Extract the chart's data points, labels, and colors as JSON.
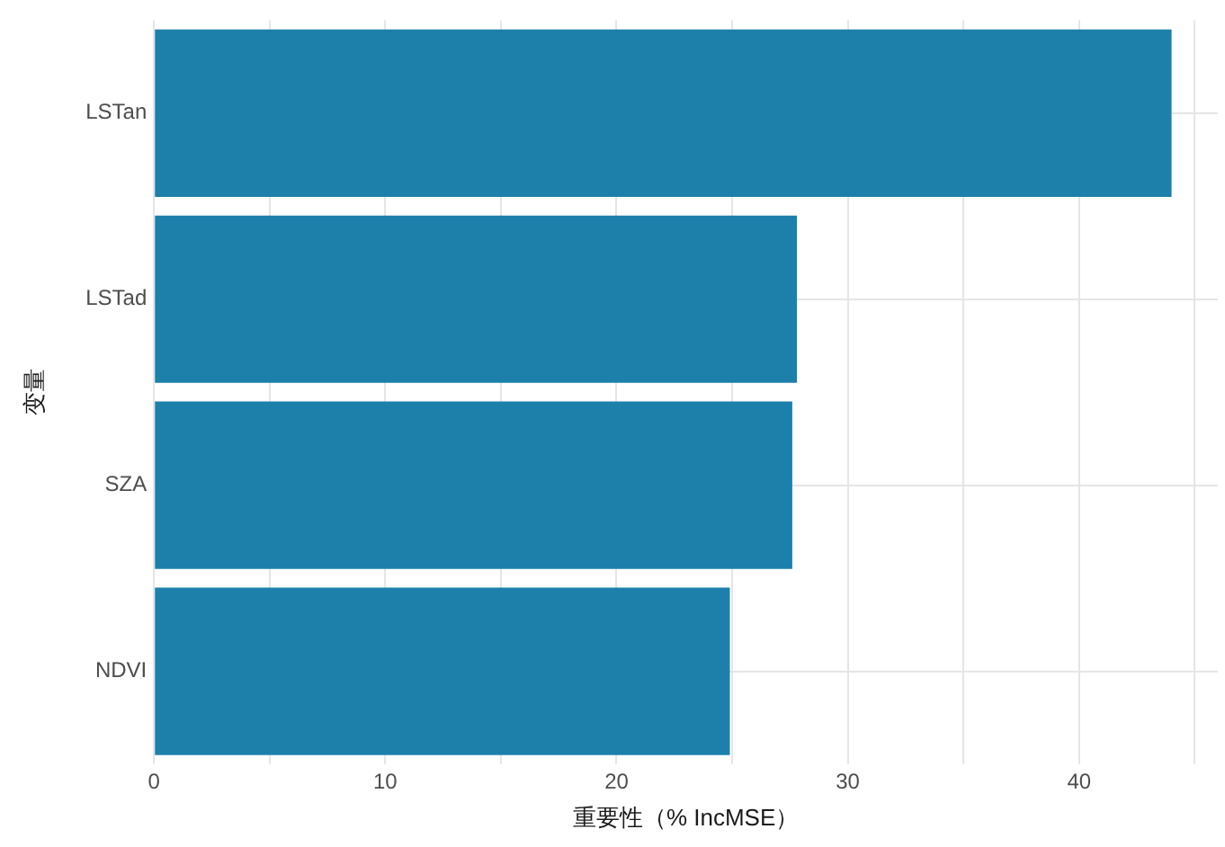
{
  "chart_data": {
    "type": "bar",
    "orientation": "horizontal",
    "xlabel": "重要性（% IncMSE）",
    "ylabel": "变量",
    "categories": [
      "LSTan",
      "LSTad",
      "SZA",
      "NDVI"
    ],
    "values": [
      44.0,
      27.8,
      27.6,
      24.9
    ],
    "color": "#1c80ab",
    "xlim": [
      0,
      46
    ],
    "xticks": [
      0,
      {
        "value": 5,
        "label": null
      },
      10,
      {
        "value": 15,
        "label": null
      },
      20,
      {
        "value": 25,
        "label": null
      },
      30,
      {
        "value": 35,
        "label": null
      },
      40,
      {
        "value": 45,
        "label": null
      }
    ],
    "grid": true
  }
}
